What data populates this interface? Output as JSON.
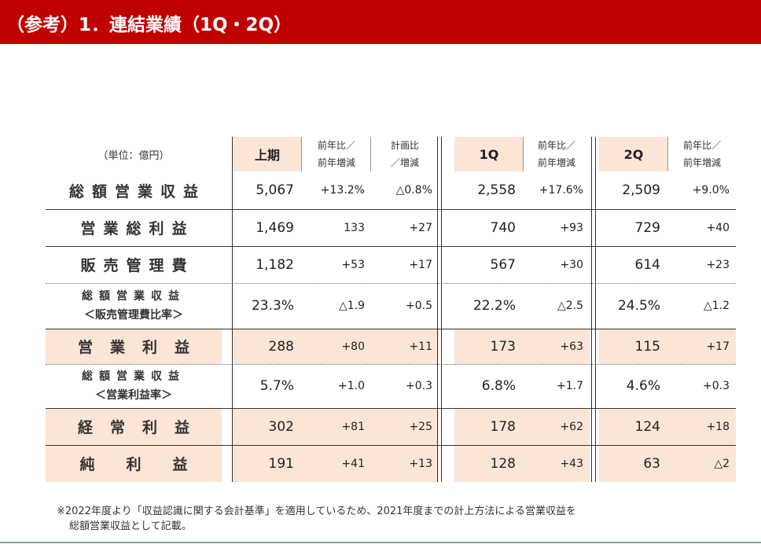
{
  "header": {
    "title": "（参考）1．連結業績（1Q・2Q）"
  },
  "table": {
    "unit_label": "（単位：億円）",
    "columns": {
      "h1": "上期",
      "h1_yoy": [
        "前年比／",
        "前年増減"
      ],
      "h1_plan": [
        "計画比",
        "／増減"
      ],
      "q1": "1Q",
      "q1_yoy": [
        "前年比／",
        "前年増減"
      ],
      "q2": "2Q",
      "q2_yoy": [
        "前年比／",
        "前年増減"
      ]
    },
    "rows": [
      {
        "label": [
          "総額営業収益"
        ],
        "values": [
          "5,067",
          "+13.2%",
          "△0.8%",
          "2,558",
          "+17.6%",
          "2,509",
          "+9.0%"
        ],
        "highlight": false
      },
      {
        "label": [
          "営業総利益"
        ],
        "values": [
          "1,469",
          "133",
          "+27",
          "740",
          "+93",
          "729",
          "+40"
        ],
        "highlight": false
      },
      {
        "label": [
          "販売管理費"
        ],
        "values": [
          "1,182",
          "+53",
          "+17",
          "567",
          "+30",
          "614",
          "+23"
        ],
        "highlight": false
      },
      {
        "label": [
          "総額営業収益",
          "＜販売管理費比率＞"
        ],
        "values": [
          "23.3%",
          "△1.9",
          "+0.5",
          "22.2%",
          "△2.5",
          "24.5%",
          "△1.2"
        ],
        "highlight": false
      },
      {
        "label": [
          "営業利益"
        ],
        "values": [
          "288",
          "+80",
          "+11",
          "173",
          "+63",
          "115",
          "+17"
        ],
        "highlight": true
      },
      {
        "label": [
          "総額営業収益",
          "＜営業利益率＞"
        ],
        "values": [
          "5.7%",
          "+1.0",
          "+0.3",
          "6.8%",
          "+1.7",
          "4.6%",
          "+0.3"
        ],
        "highlight": false
      },
      {
        "label": [
          "経常利益"
        ],
        "values": [
          "302",
          "+81",
          "+25",
          "178",
          "+62",
          "124",
          "+18"
        ],
        "highlight": true
      },
      {
        "label": [
          "純利益"
        ],
        "values": [
          "191",
          "+41",
          "+13",
          "128",
          "+43",
          "63",
          "△2"
        ],
        "highlight": true
      }
    ]
  },
  "footnote": [
    "※2022年度より「収益認識に関する会計基準」を適用しているため、2021年度までの計上方法による営業収益を",
    "総額営業収益として記載。"
  ]
}
